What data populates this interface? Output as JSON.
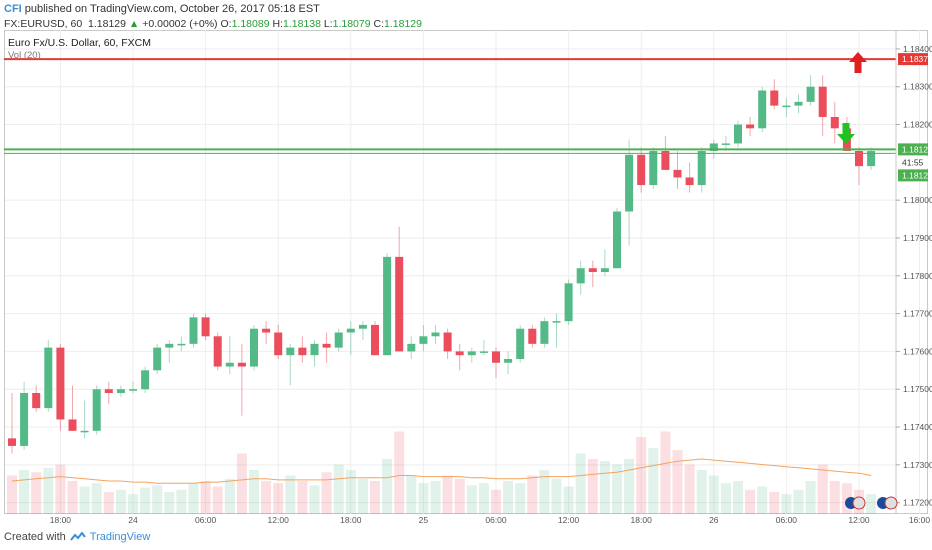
{
  "header": {
    "logo": "CFI",
    "published": "published on TradingView.com, October 26, 2017 05:18 EST",
    "symbol": "FX:EURUSD, 60",
    "last": "1.18129",
    "change": "+0.00002 (+0%)",
    "open_label": "O:",
    "open": "1.18089",
    "high_label": "H:",
    "high": "1.18138",
    "low_label": "L:",
    "low": "1.18079",
    "close_label": "C:",
    "close": "1.18129"
  },
  "legend": {
    "title": "Euro Fx/U.S. Dollar, 60, FXCM",
    "vol": "Vol (20)"
  },
  "footer": {
    "created": "Created with",
    "brand": "TradingView"
  },
  "colors": {
    "bull": "#53b987",
    "bear": "#eb4d5c",
    "ma": "#f4a460",
    "res": "#e53935",
    "sup": "#4caf50"
  },
  "chart_data": {
    "type": "candlestick",
    "ylim": [
      1.1717,
      1.1845
    ],
    "y_ticks": [
      "1.18400",
      "1.18300",
      "1.18200",
      "1.18000",
      "1.17900",
      "1.17800",
      "1.17700",
      "1.17600",
      "1.17500",
      "1.17400",
      "1.17300",
      "1.17200"
    ],
    "x_ticks": [
      "18:00",
      "24",
      "06:00",
      "12:00",
      "18:00",
      "25",
      "06:00",
      "12:00",
      "18:00",
      "26",
      "06:00",
      "12:00",
      "16:00"
    ],
    "resistance": {
      "value": 1.18373,
      "label": "1.18373"
    },
    "support": {
      "value": 1.18129,
      "label": "1.18129"
    },
    "price_labels": {
      "countdown": "41:55",
      "lower": "1.18121"
    },
    "candles": [
      {
        "o": 1.1737,
        "h": 1.1749,
        "l": 1.1733,
        "c": 1.1735
      },
      {
        "o": 1.1735,
        "h": 1.1752,
        "l": 1.1734,
        "c": 1.1749
      },
      {
        "o": 1.1749,
        "h": 1.1751,
        "l": 1.1744,
        "c": 1.1745
      },
      {
        "o": 1.1745,
        "h": 1.1763,
        "l": 1.1744,
        "c": 1.1761
      },
      {
        "o": 1.1761,
        "h": 1.1762,
        "l": 1.1739,
        "c": 1.1742
      },
      {
        "o": 1.1742,
        "h": 1.1751,
        "l": 1.1739,
        "c": 1.1739
      },
      {
        "o": 1.1739,
        "h": 1.1747,
        "l": 1.1737,
        "c": 1.1739
      },
      {
        "o": 1.1739,
        "h": 1.1751,
        "l": 1.1738,
        "c": 1.175
      },
      {
        "o": 1.175,
        "h": 1.1752,
        "l": 1.1746,
        "c": 1.1749
      },
      {
        "o": 1.1749,
        "h": 1.1751,
        "l": 1.1748,
        "c": 1.175
      },
      {
        "o": 1.175,
        "h": 1.1752,
        "l": 1.1749,
        "c": 1.175
      },
      {
        "o": 1.175,
        "h": 1.1756,
        "l": 1.1749,
        "c": 1.1755
      },
      {
        "o": 1.1755,
        "h": 1.1762,
        "l": 1.1754,
        "c": 1.1761
      },
      {
        "o": 1.1761,
        "h": 1.1763,
        "l": 1.1757,
        "c": 1.1762
      },
      {
        "o": 1.1762,
        "h": 1.1764,
        "l": 1.176,
        "c": 1.1762
      },
      {
        "o": 1.1762,
        "h": 1.177,
        "l": 1.1761,
        "c": 1.1769
      },
      {
        "o": 1.1769,
        "h": 1.177,
        "l": 1.1763,
        "c": 1.1764
      },
      {
        "o": 1.1764,
        "h": 1.1765,
        "l": 1.1755,
        "c": 1.1756
      },
      {
        "o": 1.1756,
        "h": 1.1764,
        "l": 1.1754,
        "c": 1.1757
      },
      {
        "o": 1.1757,
        "h": 1.1762,
        "l": 1.1743,
        "c": 1.1756
      },
      {
        "o": 1.1756,
        "h": 1.1767,
        "l": 1.1755,
        "c": 1.1766
      },
      {
        "o": 1.1766,
        "h": 1.1768,
        "l": 1.1762,
        "c": 1.1765
      },
      {
        "o": 1.1765,
        "h": 1.1767,
        "l": 1.1758,
        "c": 1.1759
      },
      {
        "o": 1.1759,
        "h": 1.1762,
        "l": 1.1751,
        "c": 1.1761
      },
      {
        "o": 1.1761,
        "h": 1.1764,
        "l": 1.1757,
        "c": 1.1759
      },
      {
        "o": 1.1759,
        "h": 1.1763,
        "l": 1.1756,
        "c": 1.1762
      },
      {
        "o": 1.1762,
        "h": 1.1765,
        "l": 1.1757,
        "c": 1.1761
      },
      {
        "o": 1.1761,
        "h": 1.1766,
        "l": 1.176,
        "c": 1.1765
      },
      {
        "o": 1.1765,
        "h": 1.1768,
        "l": 1.1759,
        "c": 1.1766
      },
      {
        "o": 1.1766,
        "h": 1.1768,
        "l": 1.1763,
        "c": 1.1767
      },
      {
        "o": 1.1767,
        "h": 1.1768,
        "l": 1.1759,
        "c": 1.1759
      },
      {
        "o": 1.1759,
        "h": 1.1786,
        "l": 1.1759,
        "c": 1.1785
      },
      {
        "o": 1.1785,
        "h": 1.1793,
        "l": 1.176,
        "c": 1.176
      },
      {
        "o": 1.176,
        "h": 1.1764,
        "l": 1.1758,
        "c": 1.1762
      },
      {
        "o": 1.1762,
        "h": 1.1767,
        "l": 1.176,
        "c": 1.1764
      },
      {
        "o": 1.1764,
        "h": 1.1767,
        "l": 1.1762,
        "c": 1.1765
      },
      {
        "o": 1.1765,
        "h": 1.1766,
        "l": 1.1758,
        "c": 1.176
      },
      {
        "o": 1.176,
        "h": 1.1762,
        "l": 1.1755,
        "c": 1.1759
      },
      {
        "o": 1.1759,
        "h": 1.1761,
        "l": 1.1757,
        "c": 1.176
      },
      {
        "o": 1.176,
        "h": 1.1763,
        "l": 1.1759,
        "c": 1.176
      },
      {
        "o": 1.176,
        "h": 1.1761,
        "l": 1.1753,
        "c": 1.1757
      },
      {
        "o": 1.1757,
        "h": 1.176,
        "l": 1.1754,
        "c": 1.1758
      },
      {
        "o": 1.1758,
        "h": 1.1767,
        "l": 1.1757,
        "c": 1.1766
      },
      {
        "o": 1.1766,
        "h": 1.1767,
        "l": 1.1761,
        "c": 1.1762
      },
      {
        "o": 1.1762,
        "h": 1.1769,
        "l": 1.1761,
        "c": 1.1768
      },
      {
        "o": 1.1768,
        "h": 1.177,
        "l": 1.1761,
        "c": 1.1768
      },
      {
        "o": 1.1768,
        "h": 1.1779,
        "l": 1.1767,
        "c": 1.1778
      },
      {
        "o": 1.1778,
        "h": 1.1784,
        "l": 1.1775,
        "c": 1.1782
      },
      {
        "o": 1.1782,
        "h": 1.1784,
        "l": 1.1777,
        "c": 1.1781
      },
      {
        "o": 1.1781,
        "h": 1.1787,
        "l": 1.178,
        "c": 1.1782
      },
      {
        "o": 1.1782,
        "h": 1.1798,
        "l": 1.1782,
        "c": 1.1797
      },
      {
        "o": 1.1797,
        "h": 1.1816,
        "l": 1.1788,
        "c": 1.1812
      },
      {
        "o": 1.1812,
        "h": 1.1814,
        "l": 1.1802,
        "c": 1.1804
      },
      {
        "o": 1.1804,
        "h": 1.1814,
        "l": 1.1803,
        "c": 1.1813
      },
      {
        "o": 1.1813,
        "h": 1.1817,
        "l": 1.1808,
        "c": 1.1808
      },
      {
        "o": 1.1808,
        "h": 1.1813,
        "l": 1.1803,
        "c": 1.1806
      },
      {
        "o": 1.1806,
        "h": 1.181,
        "l": 1.1802,
        "c": 1.1804
      },
      {
        "o": 1.1804,
        "h": 1.1814,
        "l": 1.1802,
        "c": 1.1813
      },
      {
        "o": 1.1813,
        "h": 1.1816,
        "l": 1.1811,
        "c": 1.1815
      },
      {
        "o": 1.1815,
        "h": 1.1817,
        "l": 1.1813,
        "c": 1.1815
      },
      {
        "o": 1.1815,
        "h": 1.1821,
        "l": 1.1814,
        "c": 1.182
      },
      {
        "o": 1.182,
        "h": 1.1822,
        "l": 1.1817,
        "c": 1.1819
      },
      {
        "o": 1.1819,
        "h": 1.183,
        "l": 1.1818,
        "c": 1.1829
      },
      {
        "o": 1.1829,
        "h": 1.1832,
        "l": 1.1824,
        "c": 1.1825
      },
      {
        "o": 1.1825,
        "h": 1.1827,
        "l": 1.1822,
        "c": 1.1825
      },
      {
        "o": 1.1825,
        "h": 1.1828,
        "l": 1.1823,
        "c": 1.1826
      },
      {
        "o": 1.1826,
        "h": 1.1833,
        "l": 1.1825,
        "c": 1.183
      },
      {
        "o": 1.183,
        "h": 1.1833,
        "l": 1.1817,
        "c": 1.1822
      },
      {
        "o": 1.1822,
        "h": 1.1826,
        "l": 1.1815,
        "c": 1.1819
      },
      {
        "o": 1.1819,
        "h": 1.1822,
        "l": 1.1813,
        "c": 1.1813
      },
      {
        "o": 1.1813,
        "h": 1.1814,
        "l": 1.1804,
        "c": 1.1809
      },
      {
        "o": 1.1809,
        "h": 1.1814,
        "l": 1.1808,
        "c": 1.1813
      }
    ],
    "volume": [
      35,
      40,
      38,
      42,
      45,
      30,
      25,
      28,
      20,
      22,
      18,
      24,
      26,
      20,
      22,
      28,
      30,
      25,
      32,
      55,
      40,
      30,
      28,
      35,
      30,
      26,
      38,
      45,
      40,
      32,
      30,
      50,
      75,
      35,
      28,
      30,
      35,
      32,
      26,
      28,
      22,
      30,
      28,
      35,
      40,
      32,
      25,
      55,
      50,
      48,
      45,
      50,
      70,
      60,
      75,
      58,
      45,
      40,
      35,
      28,
      30,
      22,
      25,
      20,
      18,
      22,
      30,
      45,
      30,
      28,
      22,
      18
    ],
    "ma": [
      30,
      31,
      32,
      33,
      34,
      33,
      32,
      31,
      30,
      30,
      29,
      29,
      28,
      28,
      28,
      28,
      29,
      29,
      30,
      31,
      32,
      32,
      31,
      31,
      31,
      31,
      31,
      32,
      33,
      33,
      33,
      33,
      35,
      35,
      34,
      34,
      34,
      34,
      33,
      33,
      32,
      32,
      32,
      33,
      34,
      34,
      34,
      35,
      36,
      37,
      38,
      40,
      42,
      44,
      46,
      48,
      49,
      50,
      49,
      48,
      47,
      46,
      45,
      44,
      43,
      42,
      41,
      40,
      39,
      38,
      37,
      35
    ],
    "vol_max": 100
  }
}
